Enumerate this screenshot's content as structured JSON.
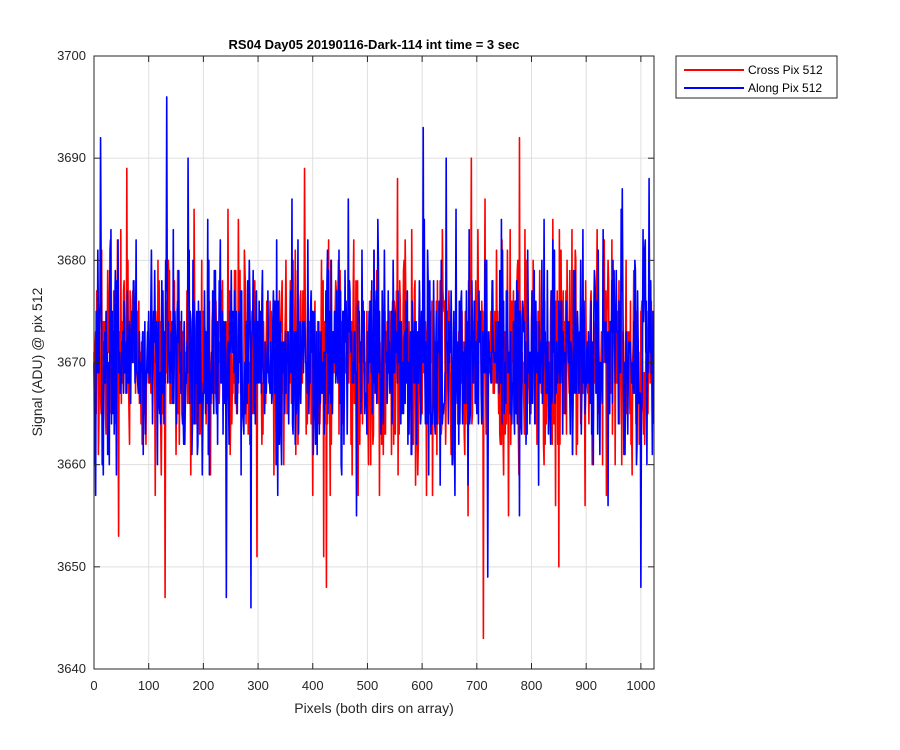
{
  "chart_data": {
    "type": "line",
    "title": "RS04 Day05 20190116-Dark-114 int time = 3 sec",
    "xlabel": "Pixels (both dirs on array)",
    "ylabel": "Signal (ADU) @ pix 512",
    "xlim": [
      0,
      1024
    ],
    "ylim": [
      3640,
      3700
    ],
    "xticks": [
      0,
      100,
      200,
      300,
      400,
      500,
      600,
      700,
      800,
      900,
      1000
    ],
    "yticks": [
      3640,
      3650,
      3660,
      3670,
      3680,
      3690,
      3700
    ],
    "grid": true,
    "legend_position": "outside-top-right",
    "series": [
      {
        "name": "Cross Pix 512",
        "color": "#ff0000",
        "noise": {
          "n_points": 1024,
          "mean": 3670.5,
          "min": 3643,
          "max": 3692
        },
        "highlights": [
          [
            130,
            3647
          ],
          [
            712,
            3643
          ],
          [
            778,
            3692
          ],
          [
            60,
            3689
          ],
          [
            245,
            3685
          ],
          [
            555,
            3688
          ],
          [
            420,
            3651
          ],
          [
            385,
            3689
          ],
          [
            850,
            3650
          ],
          [
            298,
            3651
          ],
          [
            425,
            3648
          ],
          [
            690,
            3690
          ],
          [
            45,
            3653
          ],
          [
            3,
            3673
          ]
        ]
      },
      {
        "name": "Along Pix 512",
        "color": "#0000ff",
        "noise": {
          "n_points": 1024,
          "mean": 3670.5,
          "min": 3646,
          "max": 3696
        },
        "highlights": [
          [
            133,
            3696
          ],
          [
            602,
            3693
          ],
          [
            12,
            3692
          ],
          [
            287,
            3646
          ],
          [
            242,
            3647
          ],
          [
            644,
            3690
          ],
          [
            1000,
            3648
          ],
          [
            720,
            3649
          ],
          [
            172,
            3690
          ],
          [
            3,
            3657
          ],
          [
            1015,
            3688
          ],
          [
            0,
            3670
          ]
        ]
      }
    ]
  }
}
